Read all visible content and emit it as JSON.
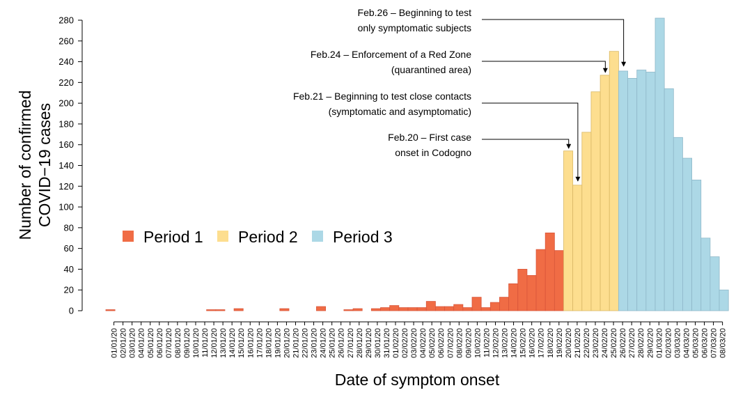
{
  "chart_data": {
    "type": "bar",
    "title": "",
    "xlabel": "Date of symptom onset",
    "ylabel_lines": [
      "Number of confirmed",
      "COVID−19 cases"
    ],
    "ylim": [
      0,
      280
    ],
    "yticks": [
      0,
      20,
      40,
      60,
      80,
      100,
      120,
      140,
      160,
      180,
      200,
      220,
      240,
      260,
      280
    ],
    "categories": [
      "01/01/20",
      "02/01/20",
      "03/01/20",
      "04/01/20",
      "05/01/20",
      "06/01/20",
      "07/01/20",
      "08/01/20",
      "09/01/20",
      "10/01/20",
      "11/01/20",
      "12/01/20",
      "13/01/20",
      "14/01/20",
      "15/01/20",
      "16/01/20",
      "17/01/20",
      "18/01/20",
      "19/01/20",
      "20/01/20",
      "21/01/20",
      "22/01/20",
      "23/01/20",
      "24/01/20",
      "25/01/20",
      "26/01/20",
      "27/01/20",
      "28/01/20",
      "29/01/20",
      "30/01/20",
      "31/01/20",
      "01/02/20",
      "02/02/20",
      "03/02/20",
      "04/02/20",
      "05/02/20",
      "06/02/20",
      "07/02/20",
      "08/02/20",
      "09/02/20",
      "10/02/20",
      "11/02/20",
      "12/02/20",
      "13/02/20",
      "14/02/20",
      "15/02/20",
      "16/02/20",
      "17/02/20",
      "18/02/20",
      "19/02/20",
      "20/02/20",
      "21/02/20",
      "22/02/20",
      "23/02/20",
      "24/02/20",
      "25/02/20",
      "26/02/20",
      "27/02/20",
      "28/02/20",
      "29/02/20",
      "01/03/20",
      "02/03/20",
      "03/03/20",
      "04/03/20",
      "05/03/20",
      "06/03/20",
      "07/03/20",
      "08/03/20"
    ],
    "values": [
      1,
      0,
      0,
      0,
      0,
      0,
      0,
      0,
      0,
      0,
      0,
      1,
      1,
      0,
      2,
      0,
      0,
      0,
      0,
      2,
      0,
      0,
      0,
      4,
      0,
      0,
      1,
      2,
      0,
      2,
      3,
      5,
      3,
      3,
      3,
      9,
      4,
      4,
      6,
      3,
      13,
      3,
      8,
      13,
      26,
      40,
      34,
      59,
      75,
      58,
      154,
      121,
      172,
      211,
      227,
      250,
      231,
      224,
      232,
      230,
      282,
      214,
      167,
      147,
      126,
      70,
      52,
      20
    ],
    "periods": [
      {
        "name": "Period 1",
        "color": "#f06c45",
        "start": "01/01/20",
        "end": "19/02/20"
      },
      {
        "name": "Period 2",
        "color": "#fdde8f",
        "start": "20/02/20",
        "end": "25/02/20"
      },
      {
        "name": "Period 3",
        "color": "#acd8e6",
        "start": "26/02/20",
        "end": "08/03/20"
      }
    ],
    "legend": [
      "Period 1",
      "Period 2",
      "Period 3"
    ],
    "legend_position": "middle-left",
    "annotations": [
      {
        "lines": [
          "Feb.26 – Beginning to test",
          "only symptomatic subjects"
        ],
        "target": "26/02/20"
      },
      {
        "lines": [
          "Feb.24 – Enforcement of a Red Zone",
          "(quarantined area)"
        ],
        "target": "24/02/20"
      },
      {
        "lines": [
          "Feb.21 – Beginning to test close contacts",
          "(symptomatic and asymptomatic)"
        ],
        "target": "21/02/20"
      },
      {
        "lines": [
          "Feb.20 – First case",
          "onset in Codogno"
        ],
        "target": "20/02/20"
      }
    ]
  }
}
